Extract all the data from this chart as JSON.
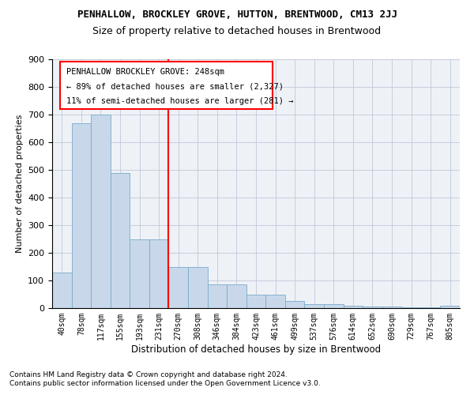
{
  "title": "PENHALLOW, BROCKLEY GROVE, HUTTON, BRENTWOOD, CM13 2JJ",
  "subtitle": "Size of property relative to detached houses in Brentwood",
  "xlabel": "Distribution of detached houses by size in Brentwood",
  "ylabel": "Number of detached properties",
  "bar_color": "#c8d8ea",
  "bar_edge_color": "#7aaac8",
  "categories": [
    "40sqm",
    "78sqm",
    "117sqm",
    "155sqm",
    "193sqm",
    "231sqm",
    "270sqm",
    "308sqm",
    "346sqm",
    "384sqm",
    "423sqm",
    "461sqm",
    "499sqm",
    "537sqm",
    "576sqm",
    "614sqm",
    "652sqm",
    "690sqm",
    "729sqm",
    "767sqm",
    "805sqm"
  ],
  "values": [
    130,
    670,
    700,
    490,
    250,
    250,
    150,
    150,
    85,
    85,
    50,
    50,
    25,
    15,
    15,
    10,
    5,
    5,
    2,
    2,
    8
  ],
  "ylim": [
    0,
    900
  ],
  "yticks": [
    0,
    100,
    200,
    300,
    400,
    500,
    600,
    700,
    800,
    900
  ],
  "ref_line_x": 5.5,
  "annotation_title": "PENHALLOW BROCKLEY GROVE: 248sqm",
  "annotation_line1": "← 89% of detached houses are smaller (2,327)",
  "annotation_line2": "11% of semi-detached houses are larger (281) →",
  "footnote1": "Contains HM Land Registry data © Crown copyright and database right 2024.",
  "footnote2": "Contains public sector information licensed under the Open Government Licence v3.0.",
  "background_color": "#eef2f7",
  "grid_color": "#c0c8d8",
  "title_fontsize": 9,
  "subtitle_fontsize": 9
}
